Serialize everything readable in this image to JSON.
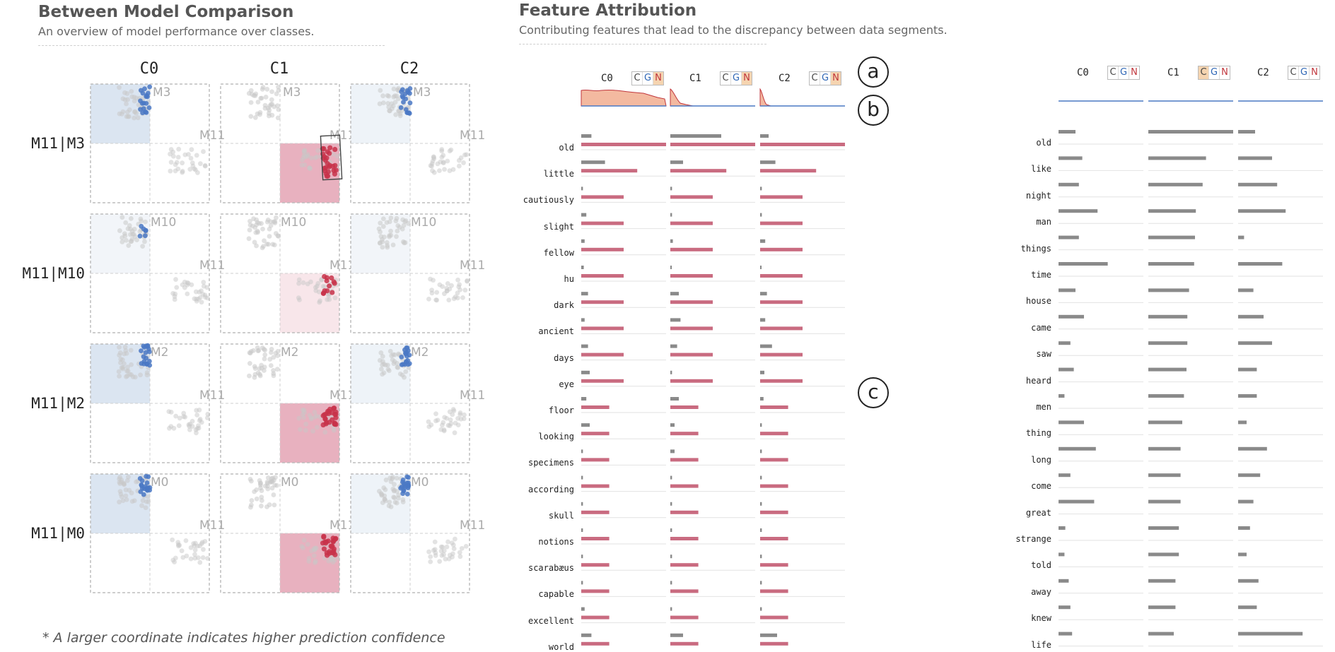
{
  "left_panel": {
    "title": "Between Model Comparison",
    "subtitle": "An overview of model performance over classes.",
    "columns": [
      "C0",
      "C1",
      "C2"
    ],
    "rows": [
      {
        "label": "M11|M3",
        "other": "M3"
      },
      {
        "label": "M11|M10",
        "other": "M10"
      },
      {
        "label": "M11|M2",
        "other": "M2"
      },
      {
        "label": "M11|M0",
        "other": "M0"
      }
    ],
    "base_model": "M11",
    "footnote": "* A larger coordinate indicates higher prediction confidence",
    "colors": {
      "blue": "#4a78c4",
      "red": "#c8324a",
      "gray": "#c8c8c8",
      "blue_fill": "#dbe5f1",
      "red_fill": "#e8b1bf"
    }
  },
  "right_panel": {
    "title": "Feature Attribution",
    "subtitle": "Contributing features that lead to the discrepancy between data segments.",
    "markers": [
      "a",
      "b",
      "c"
    ],
    "left_view": {
      "classes": [
        {
          "name": "C0",
          "selected": "N"
        },
        {
          "name": "C1",
          "selected": "N"
        },
        {
          "name": "C2",
          "selected": "N"
        }
      ],
      "words": [
        "old",
        "little",
        "cautiously",
        "slight",
        "fellow",
        "hu",
        "dark",
        "ancient",
        "days",
        "eye",
        "floor",
        "looking",
        "specimens",
        "according",
        "skull",
        "notions",
        "scarabæus",
        "capable",
        "excellent",
        "world"
      ],
      "gray_values": [
        [
          0.12,
          0.28,
          0.02,
          0.06,
          0.04,
          0.03,
          0.08,
          0.04,
          0.08,
          0.1,
          0.06,
          0.1,
          0.02,
          0.02,
          0.02,
          0.02,
          0.02,
          0.02,
          0.04,
          0.12
        ],
        [
          0.6,
          0.15,
          0.02,
          0.02,
          0.03,
          0.01,
          0.1,
          0.12,
          0.08,
          0.02,
          0.1,
          0.05,
          0.05,
          0.02,
          0.02,
          0.02,
          0.02,
          0.02,
          0.02,
          0.15
        ],
        [
          0.1,
          0.18,
          0.02,
          0.02,
          0.06,
          0.01,
          0.08,
          0.06,
          0.14,
          0.05,
          0.04,
          0.02,
          0.02,
          0.02,
          0.02,
          0.02,
          0.02,
          0.02,
          0.02,
          0.2
        ]
      ],
      "red_values": [
        [
          1.0,
          0.66,
          0.5,
          0.5,
          0.5,
          0.5,
          0.5,
          0.5,
          0.5,
          0.5,
          0.33,
          0.33,
          0.33,
          0.33,
          0.33,
          0.33,
          0.33,
          0.33,
          0.33,
          0.33
        ],
        [
          1.0,
          0.66,
          0.5,
          0.5,
          0.5,
          0.5,
          0.5,
          0.5,
          0.5,
          0.5,
          0.33,
          0.33,
          0.33,
          0.33,
          0.33,
          0.33,
          0.33,
          0.33,
          0.33,
          0.33
        ],
        [
          1.0,
          0.66,
          0.5,
          0.5,
          0.5,
          0.5,
          0.5,
          0.5,
          0.5,
          0.5,
          0.33,
          0.33,
          0.33,
          0.33,
          0.33,
          0.33,
          0.33,
          0.33,
          0.33,
          0.33
        ]
      ]
    },
    "right_view": {
      "classes": [
        {
          "name": "C0",
          "selected": ""
        },
        {
          "name": "C1",
          "selected": "C"
        },
        {
          "name": "C2",
          "selected": ""
        }
      ],
      "words": [
        "old",
        "like",
        "night",
        "man",
        "things",
        "time",
        "house",
        "came",
        "saw",
        "heard",
        "men",
        "thing",
        "long",
        "come",
        "great",
        "strange",
        "told",
        "away",
        "knew",
        "life"
      ],
      "gray_values": [
        [
          0.2,
          0.28,
          0.24,
          0.46,
          0.24,
          0.58,
          0.2,
          0.3,
          0.14,
          0.18,
          0.07,
          0.3,
          0.44,
          0.14,
          0.42,
          0.08,
          0.07,
          0.12,
          0.14,
          0.16
        ],
        [
          1.0,
          0.68,
          0.64,
          0.56,
          0.55,
          0.54,
          0.48,
          0.46,
          0.46,
          0.45,
          0.42,
          0.4,
          0.38,
          0.38,
          0.38,
          0.36,
          0.36,
          0.32,
          0.32,
          0.3
        ],
        [
          0.2,
          0.4,
          0.46,
          0.56,
          0.07,
          0.52,
          0.18,
          0.3,
          0.4,
          0.22,
          0.22,
          0.1,
          0.34,
          0.26,
          0.18,
          0.14,
          0.1,
          0.24,
          0.22,
          0.76
        ]
      ]
    }
  }
}
